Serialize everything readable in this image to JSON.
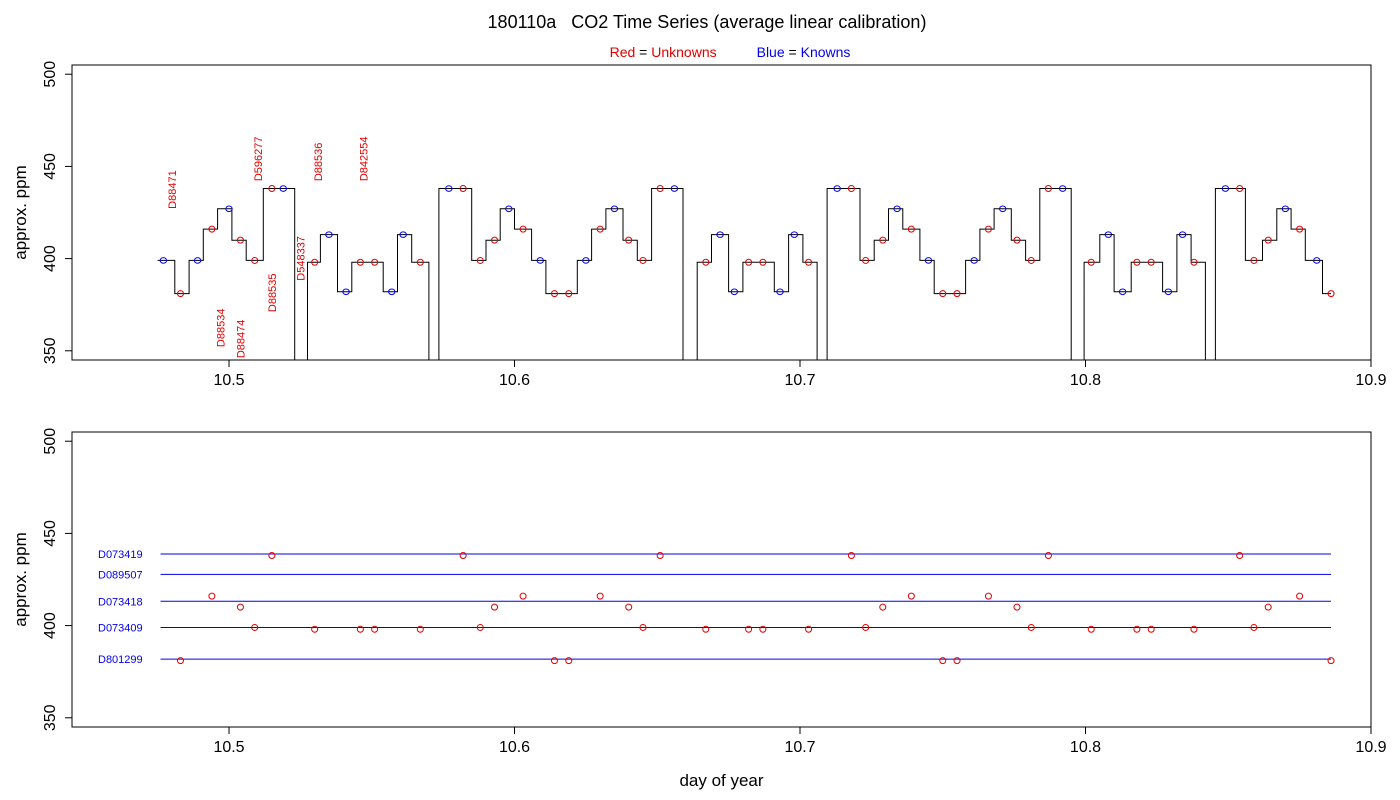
{
  "title": "180110a   CO2 Time Series (average linear calibration)",
  "legend": {
    "red_label": "Red",
    "eq": "=",
    "red_text": "Unknowns",
    "blue_label": "Blue",
    "blue_text": "Knowns"
  },
  "colors": {
    "unknown": "#e00000",
    "known": "#0000ee",
    "trace": "#000000",
    "frame": "#000000"
  },
  "chart_data": [
    {
      "type": "line",
      "panel": "top",
      "xlabel": "",
      "ylabel": "approx. ppm",
      "xlim": [
        10.445,
        10.9
      ],
      "ylim": [
        345,
        505
      ],
      "xticks": [
        10.5,
        10.6,
        10.7,
        10.8,
        10.9
      ],
      "yticks": [
        350,
        400,
        450,
        500
      ],
      "trace_segments": [
        [
          [
            10.475,
            399
          ],
          [
            10.481,
            399
          ],
          [
            10.481,
            381
          ],
          [
            10.486,
            381
          ],
          [
            10.486,
            399
          ],
          [
            10.491,
            399
          ],
          [
            10.491,
            416
          ],
          [
            10.496,
            416
          ],
          [
            10.496,
            427
          ],
          [
            10.501,
            427
          ],
          [
            10.501,
            410
          ],
          [
            10.506,
            410
          ],
          [
            10.506,
            399
          ],
          [
            10.512,
            399
          ],
          [
            10.512,
            438
          ],
          [
            10.523,
            438
          ],
          [
            10.523,
            345
          ]
        ],
        [
          [
            10.5275,
            345
          ],
          [
            10.5275,
            398
          ],
          [
            10.532,
            398
          ],
          [
            10.532,
            413
          ],
          [
            10.538,
            413
          ],
          [
            10.538,
            382
          ],
          [
            10.543,
            382
          ],
          [
            10.543,
            398
          ],
          [
            10.554,
            398
          ],
          [
            10.554,
            382
          ],
          [
            10.559,
            382
          ],
          [
            10.559,
            413
          ],
          [
            10.564,
            413
          ],
          [
            10.564,
            398
          ],
          [
            10.57,
            398
          ],
          [
            10.57,
            345
          ]
        ],
        [
          [
            10.5735,
            345
          ],
          [
            10.5735,
            438
          ],
          [
            10.585,
            438
          ],
          [
            10.585,
            399
          ],
          [
            10.59,
            399
          ],
          [
            10.59,
            410
          ],
          [
            10.595,
            410
          ],
          [
            10.595,
            427
          ],
          [
            10.6,
            427
          ],
          [
            10.6,
            416
          ],
          [
            10.606,
            416
          ],
          [
            10.606,
            399
          ],
          [
            10.611,
            399
          ],
          [
            10.611,
            381
          ],
          [
            10.622,
            381
          ],
          [
            10.622,
            399
          ],
          [
            10.627,
            399
          ],
          [
            10.627,
            416
          ],
          [
            10.632,
            416
          ],
          [
            10.632,
            427
          ],
          [
            10.638,
            427
          ],
          [
            10.638,
            410
          ],
          [
            10.643,
            410
          ],
          [
            10.643,
            399
          ],
          [
            10.648,
            399
          ],
          [
            10.648,
            438
          ],
          [
            10.659,
            438
          ],
          [
            10.659,
            345
          ]
        ],
        [
          [
            10.664,
            345
          ],
          [
            10.664,
            398
          ],
          [
            10.669,
            398
          ],
          [
            10.669,
            413
          ],
          [
            10.675,
            413
          ],
          [
            10.675,
            382
          ],
          [
            10.68,
            382
          ],
          [
            10.68,
            398
          ],
          [
            10.691,
            398
          ],
          [
            10.691,
            382
          ],
          [
            10.696,
            382
          ],
          [
            10.696,
            413
          ],
          [
            10.701,
            413
          ],
          [
            10.701,
            398
          ],
          [
            10.706,
            398
          ],
          [
            10.706,
            345
          ]
        ],
        [
          [
            10.7095,
            345
          ],
          [
            10.7095,
            438
          ],
          [
            10.721,
            438
          ],
          [
            10.721,
            399
          ],
          [
            10.726,
            399
          ],
          [
            10.726,
            410
          ],
          [
            10.731,
            410
          ],
          [
            10.731,
            427
          ],
          [
            10.736,
            427
          ],
          [
            10.736,
            416
          ],
          [
            10.742,
            416
          ],
          [
            10.742,
            399
          ],
          [
            10.747,
            399
          ],
          [
            10.747,
            381
          ],
          [
            10.758,
            381
          ],
          [
            10.758,
            399
          ],
          [
            10.763,
            399
          ],
          [
            10.763,
            416
          ],
          [
            10.768,
            416
          ],
          [
            10.768,
            427
          ],
          [
            10.774,
            427
          ],
          [
            10.774,
            410
          ],
          [
            10.779,
            410
          ],
          [
            10.779,
            399
          ],
          [
            10.784,
            399
          ],
          [
            10.784,
            438
          ],
          [
            10.795,
            438
          ],
          [
            10.795,
            345
          ]
        ],
        [
          [
            10.7995,
            345
          ],
          [
            10.7995,
            398
          ],
          [
            10.805,
            398
          ],
          [
            10.805,
            413
          ],
          [
            10.81,
            413
          ],
          [
            10.81,
            382
          ],
          [
            10.816,
            382
          ],
          [
            10.816,
            398
          ],
          [
            10.827,
            398
          ],
          [
            10.827,
            382
          ],
          [
            10.832,
            382
          ],
          [
            10.832,
            413
          ],
          [
            10.837,
            413
          ],
          [
            10.837,
            398
          ],
          [
            10.842,
            398
          ],
          [
            10.842,
            345
          ]
        ],
        [
          [
            10.8455,
            345
          ],
          [
            10.8455,
            438
          ],
          [
            10.856,
            438
          ],
          [
            10.856,
            399
          ],
          [
            10.862,
            399
          ],
          [
            10.862,
            410
          ],
          [
            10.867,
            410
          ],
          [
            10.867,
            427
          ],
          [
            10.872,
            427
          ],
          [
            10.872,
            416
          ],
          [
            10.877,
            416
          ],
          [
            10.877,
            399
          ],
          [
            10.883,
            399
          ],
          [
            10.883,
            381
          ],
          [
            10.886,
            381
          ]
        ]
      ],
      "knowns": [
        [
          10.477,
          399
        ],
        [
          10.489,
          399
        ],
        [
          10.5,
          427
        ],
        [
          10.519,
          438
        ],
        [
          10.535,
          413
        ],
        [
          10.541,
          382
        ],
        [
          10.557,
          382
        ],
        [
          10.561,
          413
        ],
        [
          10.577,
          438
        ],
        [
          10.598,
          427
        ],
        [
          10.609,
          399
        ],
        [
          10.625,
          399
        ],
        [
          10.635,
          427
        ],
        [
          10.656,
          438
        ],
        [
          10.672,
          413
        ],
        [
          10.677,
          382
        ],
        [
          10.693,
          382
        ],
        [
          10.698,
          413
        ],
        [
          10.713,
          438
        ],
        [
          10.734,
          427
        ],
        [
          10.745,
          399
        ],
        [
          10.761,
          399
        ],
        [
          10.771,
          427
        ],
        [
          10.792,
          438
        ],
        [
          10.808,
          413
        ],
        [
          10.813,
          382
        ],
        [
          10.829,
          382
        ],
        [
          10.834,
          413
        ],
        [
          10.849,
          438
        ],
        [
          10.87,
          427
        ],
        [
          10.881,
          399
        ]
      ],
      "unknowns": [
        [
          10.483,
          381
        ],
        [
          10.494,
          416
        ],
        [
          10.504,
          410
        ],
        [
          10.509,
          399
        ],
        [
          10.515,
          438
        ],
        [
          10.53,
          398
        ],
        [
          10.546,
          398
        ],
        [
          10.551,
          398
        ],
        [
          10.567,
          398
        ],
        [
          10.582,
          438
        ],
        [
          10.588,
          399
        ],
        [
          10.593,
          410
        ],
        [
          10.603,
          416
        ],
        [
          10.614,
          381
        ],
        [
          10.619,
          381
        ],
        [
          10.63,
          416
        ],
        [
          10.64,
          410
        ],
        [
          10.645,
          399
        ],
        [
          10.651,
          438
        ],
        [
          10.667,
          398
        ],
        [
          10.682,
          398
        ],
        [
          10.687,
          398
        ],
        [
          10.703,
          398
        ],
        [
          10.718,
          438
        ],
        [
          10.723,
          399
        ],
        [
          10.729,
          410
        ],
        [
          10.739,
          416
        ],
        [
          10.75,
          381
        ],
        [
          10.755,
          381
        ],
        [
          10.766,
          416
        ],
        [
          10.776,
          410
        ],
        [
          10.781,
          399
        ],
        [
          10.787,
          438
        ],
        [
          10.802,
          398
        ],
        [
          10.818,
          398
        ],
        [
          10.823,
          398
        ],
        [
          10.838,
          398
        ],
        [
          10.854,
          438
        ],
        [
          10.859,
          399
        ],
        [
          10.864,
          410
        ],
        [
          10.875,
          416
        ],
        [
          10.886,
          381
        ]
      ],
      "annotations": [
        {
          "text": "D88471",
          "x": 10.4815,
          "y": 427
        },
        {
          "text": "D596277",
          "x": 10.5115,
          "y": 442
        },
        {
          "text": "D88536",
          "x": 10.5325,
          "y": 442
        },
        {
          "text": "D842554",
          "x": 10.5485,
          "y": 442
        },
        {
          "text": "D548337",
          "x": 10.5265,
          "y": 388
        },
        {
          "text": "D88535",
          "x": 10.5165,
          "y": 371
        },
        {
          "text": "D88534",
          "x": 10.4985,
          "y": 352
        },
        {
          "text": "D88474",
          "x": 10.5055,
          "y": 346
        }
      ]
    },
    {
      "type": "scatter",
      "panel": "bottom",
      "xlabel": "day of year",
      "ylabel": "approx. ppm",
      "xlim": [
        10.445,
        10.9
      ],
      "ylim": [
        345,
        505
      ],
      "xticks": [
        10.5,
        10.6,
        10.7,
        10.8,
        10.9
      ],
      "yticks": [
        350,
        400,
        450,
        500
      ],
      "reference_lines": [
        {
          "name": "D073419",
          "y": 438.8,
          "x_start": 10.476,
          "x_end": 10.886
        },
        {
          "name": "D089507",
          "y": 427.8,
          "x_start": 10.476,
          "x_end": 10.886
        },
        {
          "name": "D073418",
          "y": 413.2,
          "x_start": 10.476,
          "x_end": 10.886
        },
        {
          "name": "D073409",
          "y": 399.0,
          "x_start": 10.476,
          "x_end": 10.886
        },
        {
          "name": "D801299",
          "y": 381.8,
          "x_start": 10.476,
          "x_end": 10.886
        }
      ],
      "unknowns": [
        [
          10.483,
          381
        ],
        [
          10.494,
          416
        ],
        [
          10.504,
          410
        ],
        [
          10.509,
          399
        ],
        [
          10.515,
          438
        ],
        [
          10.53,
          398
        ],
        [
          10.546,
          398
        ],
        [
          10.551,
          398
        ],
        [
          10.567,
          398
        ],
        [
          10.582,
          438
        ],
        [
          10.588,
          399
        ],
        [
          10.593,
          410
        ],
        [
          10.603,
          416
        ],
        [
          10.614,
          381
        ],
        [
          10.619,
          381
        ],
        [
          10.63,
          416
        ],
        [
          10.64,
          410
        ],
        [
          10.645,
          399
        ],
        [
          10.651,
          438
        ],
        [
          10.667,
          398
        ],
        [
          10.682,
          398
        ],
        [
          10.687,
          398
        ],
        [
          10.703,
          398
        ],
        [
          10.718,
          438
        ],
        [
          10.723,
          399
        ],
        [
          10.729,
          410
        ],
        [
          10.739,
          416
        ],
        [
          10.75,
          381
        ],
        [
          10.755,
          381
        ],
        [
          10.766,
          416
        ],
        [
          10.776,
          410
        ],
        [
          10.781,
          399
        ],
        [
          10.787,
          438
        ],
        [
          10.802,
          398
        ],
        [
          10.818,
          398
        ],
        [
          10.823,
          398
        ],
        [
          10.838,
          398
        ],
        [
          10.854,
          438
        ],
        [
          10.859,
          399
        ],
        [
          10.864,
          410
        ],
        [
          10.875,
          416
        ],
        [
          10.886,
          381
        ]
      ]
    }
  ]
}
